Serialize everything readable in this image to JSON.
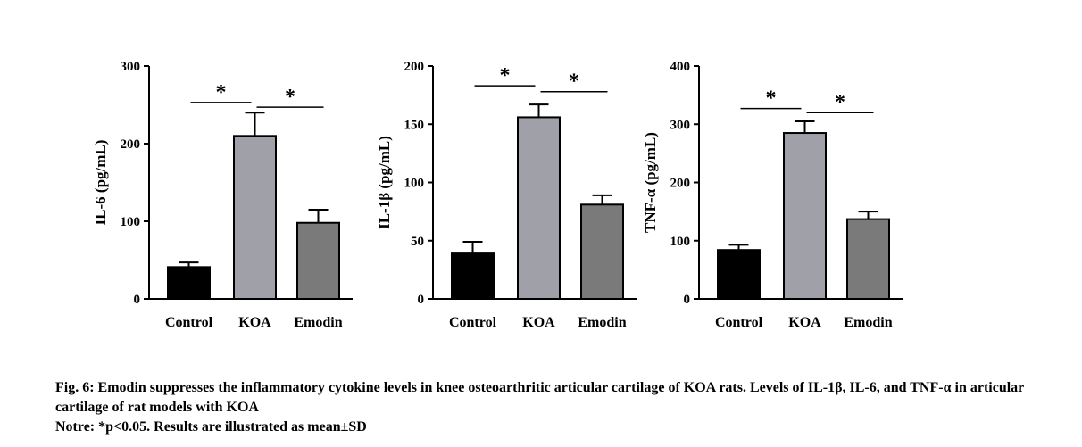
{
  "chart_data": [
    {
      "type": "bar",
      "categories": [
        "Control",
        "KOA",
        "Emodin"
      ],
      "values": [
        41,
        210,
        98
      ],
      "errors": [
        6,
        30,
        17
      ],
      "colors": [
        "#000000",
        "#a0a0a8",
        "#7a7a7a"
      ],
      "ylabel": "IL-6 (pg/mL)",
      "ylim": [
        0,
        300
      ],
      "yticks": [
        "0",
        "100",
        "200",
        "300"
      ],
      "significance": [
        {
          "from": 0,
          "to": 1,
          "y": 253,
          "label": "*"
        },
        {
          "from": 1,
          "to": 2,
          "y": 247,
          "label": "*"
        }
      ]
    },
    {
      "type": "bar",
      "categories": [
        "Control",
        "KOA",
        "Emodin"
      ],
      "values": [
        39,
        156,
        81
      ],
      "errors": [
        10,
        11,
        8
      ],
      "colors": [
        "#000000",
        "#a0a0a8",
        "#7a7a7a"
      ],
      "ylabel": "IL-1β (pg/mL)",
      "ylim": [
        0,
        200
      ],
      "yticks": [
        "0",
        "50",
        "100",
        "150",
        "200"
      ],
      "significance": [
        {
          "from": 0,
          "to": 1,
          "y": 183,
          "label": "*"
        },
        {
          "from": 1,
          "to": 2,
          "y": 178,
          "label": "*"
        }
      ]
    },
    {
      "type": "bar",
      "categories": [
        "Control",
        "KOA",
        "Emodin"
      ],
      "values": [
        84,
        285,
        137
      ],
      "errors": [
        9,
        20,
        13
      ],
      "colors": [
        "#000000",
        "#a0a0a8",
        "#7a7a7a"
      ],
      "ylabel": "TNF-α (pg/mL)",
      "ylim": [
        0,
        400
      ],
      "yticks": [
        "0",
        "100",
        "200",
        "300",
        "400"
      ],
      "significance": [
        {
          "from": 0,
          "to": 1,
          "y": 327,
          "label": "*"
        },
        {
          "from": 1,
          "to": 2,
          "y": 320,
          "label": "*"
        }
      ]
    }
  ],
  "caption": {
    "line1": "Fig. 6: Emodin suppresses the inflammatory cytokine levels in knee osteoarthritic articular cartilage of KOA rats. Levels of IL-1β, IL-6, and TNF-α in articular cartilage of rat models with KOA",
    "line2": "Notre: *p<0.05. Results are illustrated as mean±SD"
  }
}
